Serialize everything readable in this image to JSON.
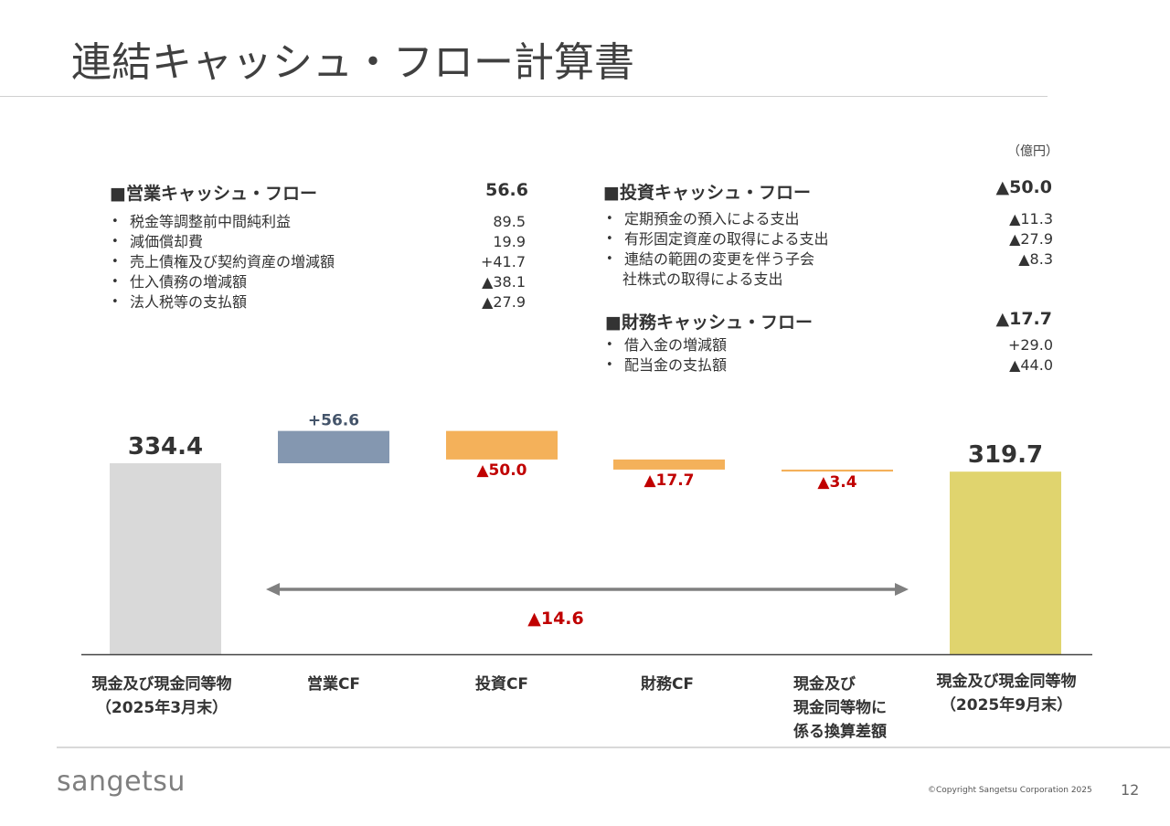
{
  "title": "連結キャッシュ・フロー計算書",
  "unit": "（億円）",
  "operating": {
    "heading": "■営業キャッシュ・フロー",
    "value": "56.6",
    "items": [
      {
        "label": "税金等調整前中間純利益",
        "value": "89.5"
      },
      {
        "label": "減価償却費",
        "value": "19.9"
      },
      {
        "label": "売上債権及び契約資産の増減額",
        "value": "+41.7"
      },
      {
        "label": "仕入債務の増減額",
        "value": "▲38.1"
      },
      {
        "label": "法人税等の支払額",
        "value": "▲27.9"
      }
    ]
  },
  "investing": {
    "heading": "■投資キャッシュ・フロー",
    "value": "▲50.0",
    "items": [
      {
        "label": "定期預金の預入による支出",
        "value": "▲11.3"
      },
      {
        "label": "有形固定資産の取得による支出",
        "value": "▲27.9"
      },
      {
        "label": "連結の範囲の変更を伴う子会",
        "label2": "社株式の取得による支出",
        "value": "▲8.3"
      }
    ]
  },
  "financing": {
    "heading": "■財務キャッシュ・フロー",
    "value": "▲17.7",
    "items": [
      {
        "label": "借入金の増減額",
        "value": "+29.0"
      },
      {
        "label": "配当金の支払額",
        "value": "▲44.0"
      }
    ]
  },
  "chart_data": {
    "type": "bar",
    "subtype": "waterfall",
    "categories": [
      "現金及び現金同等物（2025年3月末）",
      "営業CF",
      "投資CF",
      "財務CF",
      "現金及び現金同等物に係る換算差額",
      "現金及び現金同等物（2025年9月末）"
    ],
    "category_lines": [
      [
        "現金及び現金同等物",
        "（2025年3月末）"
      ],
      [
        "営業CF"
      ],
      [
        "投資CF"
      ],
      [
        "財務CF"
      ],
      [
        "現金及び",
        "現金同等物に",
        "係る換算差額"
      ],
      [
        "現金及び現金同等物",
        "（2025年9月末）"
      ]
    ],
    "values": [
      334.4,
      56.6,
      -50.0,
      -17.7,
      -3.4,
      319.7
    ],
    "kinds": [
      "total",
      "delta",
      "delta",
      "delta",
      "delta",
      "total"
    ],
    "data_labels": [
      "334.4",
      "+56.6",
      "▲50.0",
      "▲17.7",
      "▲3.4",
      "319.7"
    ],
    "net_change_label": "▲14.6",
    "net_change": -14.6,
    "colors": {
      "start_total": "#d9d9d9",
      "increase": "#8497b0",
      "decrease": "#f4b15a",
      "end_total": "#e0d46e",
      "negative_label": "#c00000",
      "positive_label": "#44546a",
      "total_label": "#333333",
      "arrow": "#808080"
    }
  },
  "footer": {
    "logo": "sangetsu",
    "copyright": "©Copyright Sangetsu Corporation 2025",
    "page_number": "12"
  }
}
